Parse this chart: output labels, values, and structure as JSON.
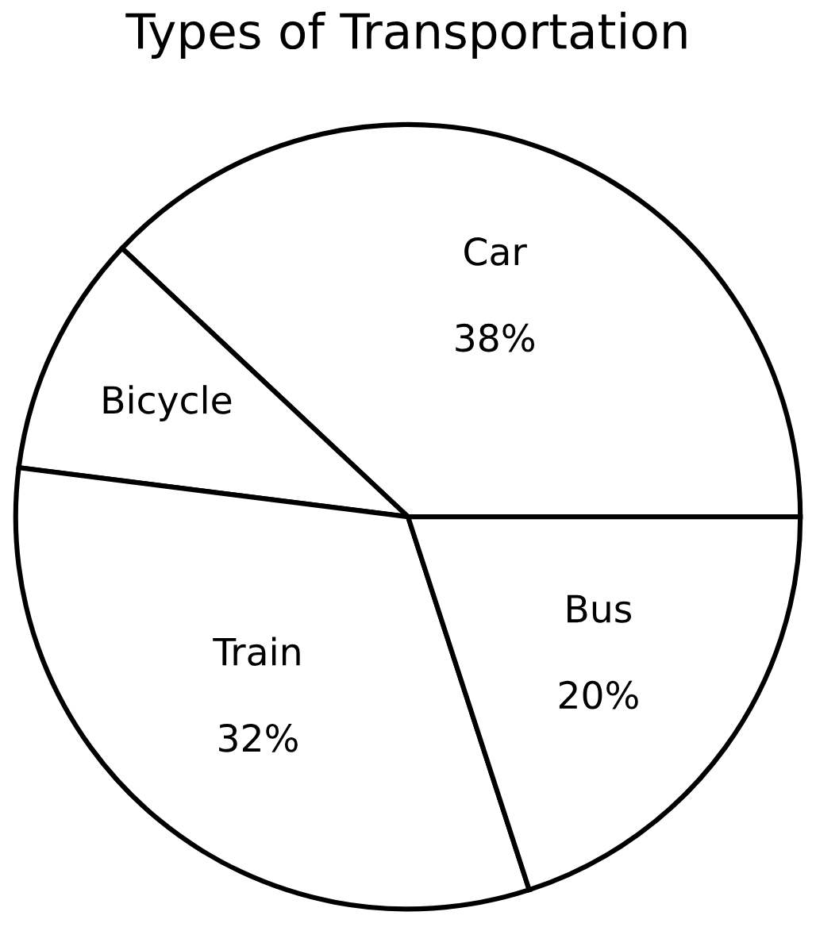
{
  "chart_data": {
    "type": "pie",
    "title": "Types of Transportation",
    "categories": [
      "Car",
      "Bicycle",
      "Train",
      "Bus"
    ],
    "values": [
      38,
      10,
      32,
      20
    ],
    "value_labels": [
      "38%",
      null,
      "32%",
      "20%"
    ],
    "colors": [
      "#ffffff",
      "#ffffff",
      "#ffffff",
      "#ffffff"
    ]
  }
}
